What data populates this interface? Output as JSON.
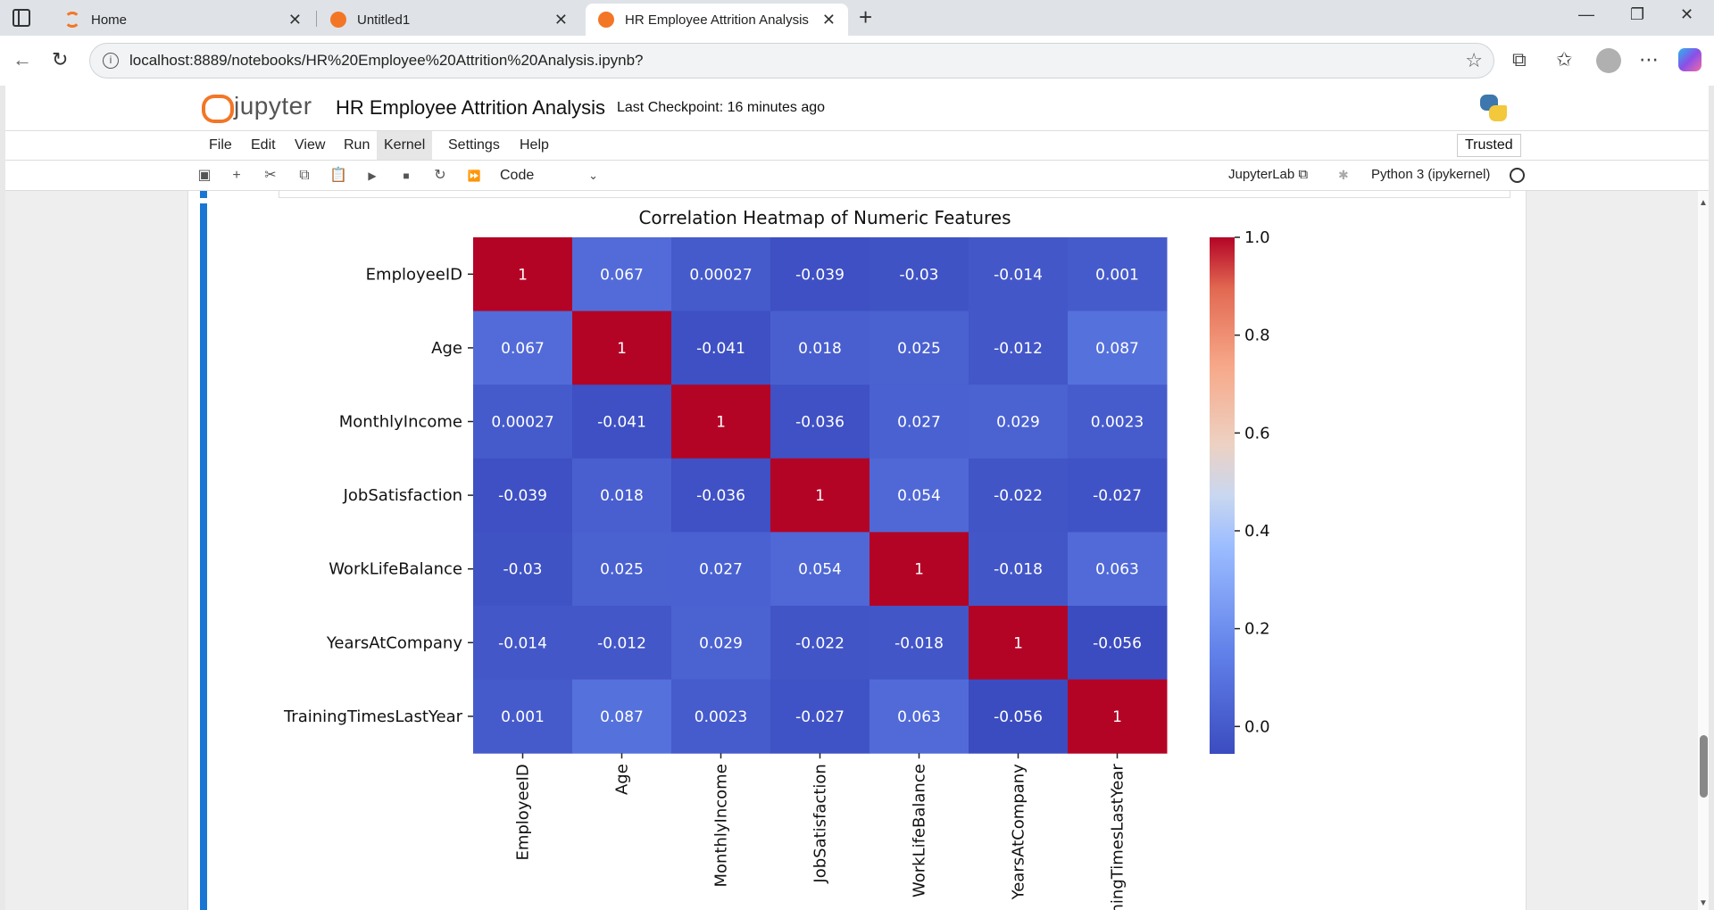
{
  "browser": {
    "tabs": [
      {
        "label": "Home",
        "icon": "jupyter-icon"
      },
      {
        "label": "Untitled1",
        "icon": "notebook-icon"
      },
      {
        "label": "HR Employee Attrition Analysis",
        "icon": "notebook-icon",
        "active": true
      }
    ],
    "url": "localhost:8889/notebooks/HR%20Employee%20Attrition%20Analysis.ipynb?"
  },
  "jupyter": {
    "logo_text": "jupyter",
    "notebook_title": "HR Employee Attrition Analysis",
    "checkpoint": "Last Checkpoint: 16 minutes ago",
    "menu": [
      "File",
      "Edit",
      "View",
      "Run",
      "Kernel",
      "Settings",
      "Help"
    ],
    "active_menu": "Kernel",
    "trusted": "Trusted",
    "cell_type": "Code",
    "jupyterlab_link": "JupyterLab",
    "kernel_name": "Python 3 (ipykernel)"
  },
  "chart_data": {
    "type": "heatmap",
    "title": "Correlation Heatmap of Numeric Features",
    "labels": [
      "EmployeeID",
      "Age",
      "MonthlyIncome",
      "JobSatisfaction",
      "WorkLifeBalance",
      "YearsAtCompany",
      "TrainingTimesLastYear"
    ],
    "matrix": [
      [
        1,
        0.067,
        0.00027,
        -0.039,
        -0.03,
        -0.014,
        0.001
      ],
      [
        0.067,
        1,
        -0.041,
        0.018,
        0.025,
        -0.012,
        0.087
      ],
      [
        0.00027,
        -0.041,
        1,
        -0.036,
        0.027,
        0.029,
        0.0023
      ],
      [
        -0.039,
        0.018,
        -0.036,
        1,
        0.054,
        -0.022,
        -0.027
      ],
      [
        -0.03,
        0.025,
        0.027,
        0.054,
        1,
        -0.018,
        0.063
      ],
      [
        -0.014,
        -0.012,
        0.029,
        -0.022,
        -0.018,
        1,
        -0.056
      ],
      [
        0.001,
        0.087,
        0.0023,
        -0.027,
        0.063,
        -0.056,
        1
      ]
    ],
    "annotations": [
      [
        "1",
        "0.067",
        "0.00027",
        "-0.039",
        "-0.03",
        "-0.014",
        "0.001"
      ],
      [
        "0.067",
        "1",
        "-0.041",
        "0.018",
        "0.025",
        "-0.012",
        "0.087"
      ],
      [
        "0.00027",
        "-0.041",
        "1",
        "-0.036",
        "0.027",
        "0.029",
        "0.0023"
      ],
      [
        "-0.039",
        "0.018",
        "-0.036",
        "1",
        "0.054",
        "-0.022",
        "-0.027"
      ],
      [
        "-0.03",
        "0.025",
        "0.027",
        "0.054",
        "1",
        "-0.018",
        "0.063"
      ],
      [
        "-0.014",
        "-0.012",
        "0.029",
        "-0.022",
        "-0.018",
        "1",
        "-0.056"
      ],
      [
        "0.001",
        "0.087",
        "0.0023",
        "-0.027",
        "0.063",
        "-0.056",
        "1"
      ]
    ],
    "colormap": "coolwarm",
    "vmin": -0.056,
    "vmax": 1.0,
    "colorbar_ticks": [
      "0.0",
      "0.2",
      "0.4",
      "0.6",
      "0.8",
      "1.0"
    ],
    "colorbar_tick_values": [
      0.0,
      0.2,
      0.4,
      0.6,
      0.8,
      1.0
    ]
  }
}
